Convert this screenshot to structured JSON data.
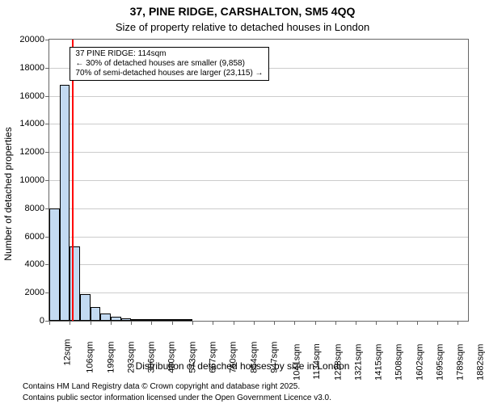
{
  "chart": {
    "type": "histogram",
    "title_main": "37, PINE RIDGE, CARSHALTON, SM5 4QQ",
    "title_sub": "Size of property relative to detached houses in London",
    "title_fontsize": 14,
    "subtitle_fontsize": 13,
    "y_axis_label": "Number of detached properties",
    "x_axis_label": "Distribution of detached houses by size in London",
    "axis_label_fontsize": 12,
    "tick_fontsize": 11,
    "background_color": "#ffffff",
    "plot_border_color": "#666666",
    "grid_color": "#cccccc",
    "bar_fill_color": "#c3daf2",
    "bar_edge_color": "#000000",
    "marker_line_color": "#ff0000",
    "marker_line_width": 2,
    "marker_value_sqm": 114,
    "x_min": 12,
    "x_max": 1929,
    "x_tick_values": [
      12,
      106,
      199,
      293,
      386,
      480,
      573,
      667,
      760,
      854,
      947,
      1041,
      1134,
      1228,
      1321,
      1415,
      1508,
      1602,
      1695,
      1789,
      1882
    ],
    "x_tick_labels": [
      "12sqm",
      "106sqm",
      "199sqm",
      "293sqm",
      "386sqm",
      "480sqm",
      "573sqm",
      "667sqm",
      "760sqm",
      "854sqm",
      "947sqm",
      "1041sqm",
      "1134sqm",
      "1228sqm",
      "1321sqm",
      "1415sqm",
      "1508sqm",
      "1602sqm",
      "1695sqm",
      "1789sqm",
      "1882sqm"
    ],
    "y_min": 0,
    "y_max": 20000,
    "y_tick_step": 2000,
    "y_tick_values": [
      0,
      2000,
      4000,
      6000,
      8000,
      10000,
      12000,
      14000,
      16000,
      18000,
      20000
    ],
    "bin_width_sqm": 46.75,
    "bins": [
      {
        "start": 12,
        "count": 8000
      },
      {
        "start": 59,
        "count": 16800
      },
      {
        "start": 106,
        "count": 5300
      },
      {
        "start": 153,
        "count": 1900
      },
      {
        "start": 199,
        "count": 1000
      },
      {
        "start": 246,
        "count": 500
      },
      {
        "start": 293,
        "count": 300
      },
      {
        "start": 340,
        "count": 200
      },
      {
        "start": 386,
        "count": 120
      },
      {
        "start": 433,
        "count": 110
      },
      {
        "start": 480,
        "count": 90
      },
      {
        "start": 527,
        "count": 70
      },
      {
        "start": 573,
        "count": 50
      },
      {
        "start": 620,
        "count": 40
      }
    ],
    "annotation": {
      "line1": "37 PINE RIDGE: 114sqm",
      "line2": "← 30% of detached houses are smaller (9,858)",
      "line3": "70% of semi-detached houses are larger (23,115) →",
      "fontsize": 10,
      "left_sqm": 106,
      "top_count": 19500
    }
  },
  "footer": {
    "line1": "Contains HM Land Registry data © Crown copyright and database right 2025.",
    "line2": "Contains public sector information licensed under the Open Government Licence v3.0.",
    "fontsize": 10
  }
}
